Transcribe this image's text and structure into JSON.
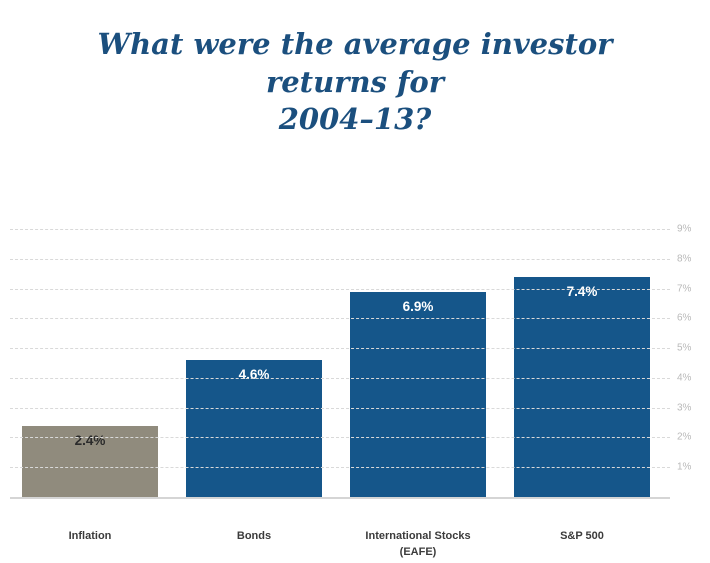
{
  "title": {
    "line1": "What were the average investor returns for",
    "line2": "2004–13?",
    "color": "#1b4f7e"
  },
  "chart_data": {
    "type": "bar",
    "title": "What were the average investor returns for 2004–13?",
    "categories": [
      "Inflation",
      "Bonds",
      "International Stocks (EAFE)",
      "S&P 500"
    ],
    "values": [
      2.4,
      4.6,
      6.9,
      7.4
    ],
    "value_labels": [
      "2.4%",
      "4.6%",
      "6.9%",
      "7.4%"
    ],
    "bar_colors": [
      "#908b7d",
      "#15568a",
      "#15568a",
      "#15568a"
    ],
    "value_label_colors": [
      "#2b2b2b",
      "#ffffff",
      "#ffffff",
      "#ffffff"
    ],
    "xlabel": "",
    "ylabel": "",
    "ylim": [
      0,
      9.4
    ],
    "yticks": [
      1,
      2,
      3,
      4,
      5,
      6,
      7,
      8,
      9
    ],
    "ytick_labels": [
      "1%",
      "2%",
      "3%",
      "4%",
      "5%",
      "6%",
      "7%",
      "8%",
      "9%"
    ],
    "grid": true,
    "grid_style": "dashed",
    "y_axis_position": "right",
    "legend": "none"
  }
}
